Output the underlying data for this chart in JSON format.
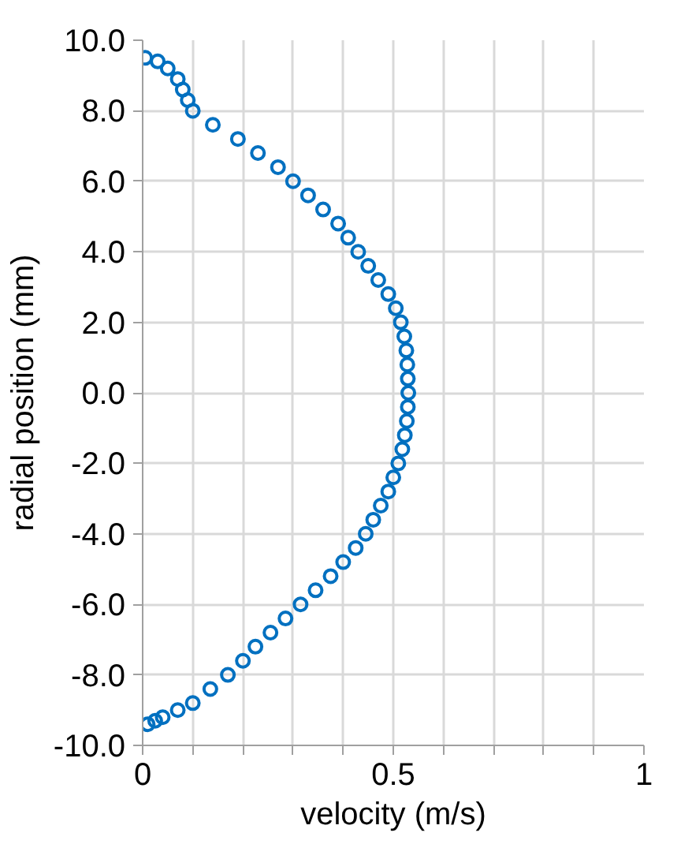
{
  "chart_data": {
    "type": "scatter",
    "xlabel": "velocity (m/s)",
    "ylabel": "radial position (mm)",
    "xlim": [
      0,
      1
    ],
    "ylim": [
      -10,
      10
    ],
    "xticks": [
      0,
      {
        "value": 0.1,
        "label": null
      },
      {
        "value": 0.2,
        "label": null
      },
      {
        "value": 0.3,
        "label": null
      },
      {
        "value": 0.4,
        "label": null
      },
      0.5,
      {
        "value": 0.6,
        "label": null
      },
      {
        "value": 0.7,
        "label": null
      },
      {
        "value": 0.8,
        "label": null
      },
      {
        "value": 0.9,
        "label": null
      },
      1
    ],
    "yticks": [
      {
        "value": -10,
        "label": "-10.0"
      },
      {
        "value": -8,
        "label": "-8.0"
      },
      {
        "value": -6,
        "label": "-6.0"
      },
      {
        "value": -4,
        "label": "-4.0"
      },
      {
        "value": -2,
        "label": "-2.0"
      },
      {
        "value": 0,
        "label": "0.0"
      },
      {
        "value": 2,
        "label": "2.0"
      },
      {
        "value": 4,
        "label": "4.0"
      },
      {
        "value": 6,
        "label": "6.0"
      },
      {
        "value": 8,
        "label": "8.0"
      },
      {
        "value": 10,
        "label": "10.0"
      }
    ],
    "grid": true,
    "marker": "circle",
    "series": [
      {
        "color": "#0070c0",
        "x": [
          0.005,
          0.03,
          0.05,
          0.07,
          0.08,
          0.09,
          0.1,
          0.14,
          0.19,
          0.23,
          0.27,
          0.3,
          0.33,
          0.36,
          0.39,
          0.41,
          0.43,
          0.45,
          0.47,
          0.49,
          0.505,
          0.515,
          0.522,
          0.526,
          0.528,
          0.529,
          0.53,
          0.529,
          0.527,
          0.523,
          0.518,
          0.51,
          0.5,
          0.49,
          0.475,
          0.46,
          0.445,
          0.425,
          0.4,
          0.375,
          0.345,
          0.315,
          0.285,
          0.255,
          0.225,
          0.2,
          0.17,
          0.135,
          0.1,
          0.07,
          0.04,
          0.025,
          0.01
        ],
        "values": [
          9.5,
          9.4,
          9.2,
          8.9,
          8.6,
          8.3,
          8.0,
          7.6,
          7.2,
          6.8,
          6.4,
          6.0,
          5.6,
          5.2,
          4.8,
          4.4,
          4.0,
          3.6,
          3.2,
          2.8,
          2.4,
          2.0,
          1.6,
          1.2,
          0.8,
          0.4,
          0.0,
          -0.4,
          -0.8,
          -1.2,
          -1.6,
          -2.0,
          -2.4,
          -2.8,
          -3.2,
          -3.6,
          -4.0,
          -4.4,
          -4.8,
          -5.2,
          -5.6,
          -6.0,
          -6.4,
          -6.8,
          -7.2,
          -7.6,
          -8.0,
          -8.4,
          -8.8,
          -9.0,
          -9.2,
          -9.3,
          -9.4
        ]
      }
    ]
  }
}
